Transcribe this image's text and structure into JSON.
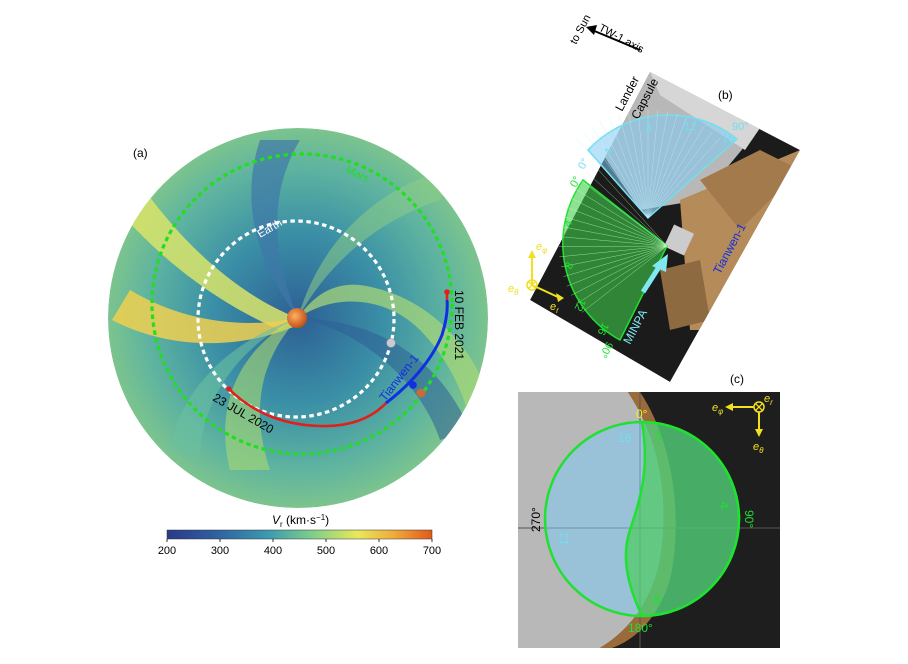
{
  "panel_a": {
    "label": "(a)",
    "earth_label": "Earth",
    "mars_label": "Mars",
    "spacecraft_label": "Tianwen-1",
    "start_date": "23 JUL 2020",
    "end_date": "10 FEB 2021",
    "colorbar": {
      "label_main": "V",
      "label_sub": "r",
      "label_unit": " (km·s",
      "label_sup": "−1",
      "label_close": ")",
      "ticks": [
        "200",
        "300",
        "400",
        "500",
        "600",
        "700"
      ]
    },
    "colors": {
      "earth_orbit": "#ffffff",
      "mars_orbit": "#22dd22",
      "trajectory_transfer": "#e0201c",
      "trajectory_tianwen": "#1030e0"
    }
  },
  "panel_b": {
    "label": "(b)",
    "to_sun": "to Sun",
    "tw_axis": "TW-1 axis",
    "lander_label_1": "Lander",
    "lander_label_2": "Capsule",
    "spacecraft_label": "Tianwen-1",
    "instrument_label": "MINPA",
    "cyan_ticks": [
      "0°",
      "4",
      "8",
      "12",
      "16",
      "90°"
    ],
    "green_ticks": [
      "0°",
      "4",
      "8",
      "12",
      "16",
      "90°"
    ],
    "axis_phi": "e",
    "axis_phi_sub": "φ",
    "axis_r": "e",
    "axis_r_sub": "r",
    "axis_theta": "e",
    "axis_theta_sub": "θ"
  },
  "panel_c": {
    "label": "(c)",
    "angle_0": "0°",
    "angle_90": "90°",
    "angle_180": "180°",
    "angle_270": "270°",
    "cyan_16": "16",
    "cyan_12": "12",
    "green_1": "1",
    "green_4": "4",
    "green_8": "8",
    "axis_phi": "e",
    "axis_phi_sub": "φ",
    "axis_r": "e",
    "axis_r_sub": "r",
    "axis_theta": "e",
    "axis_theta_sub": "θ"
  }
}
